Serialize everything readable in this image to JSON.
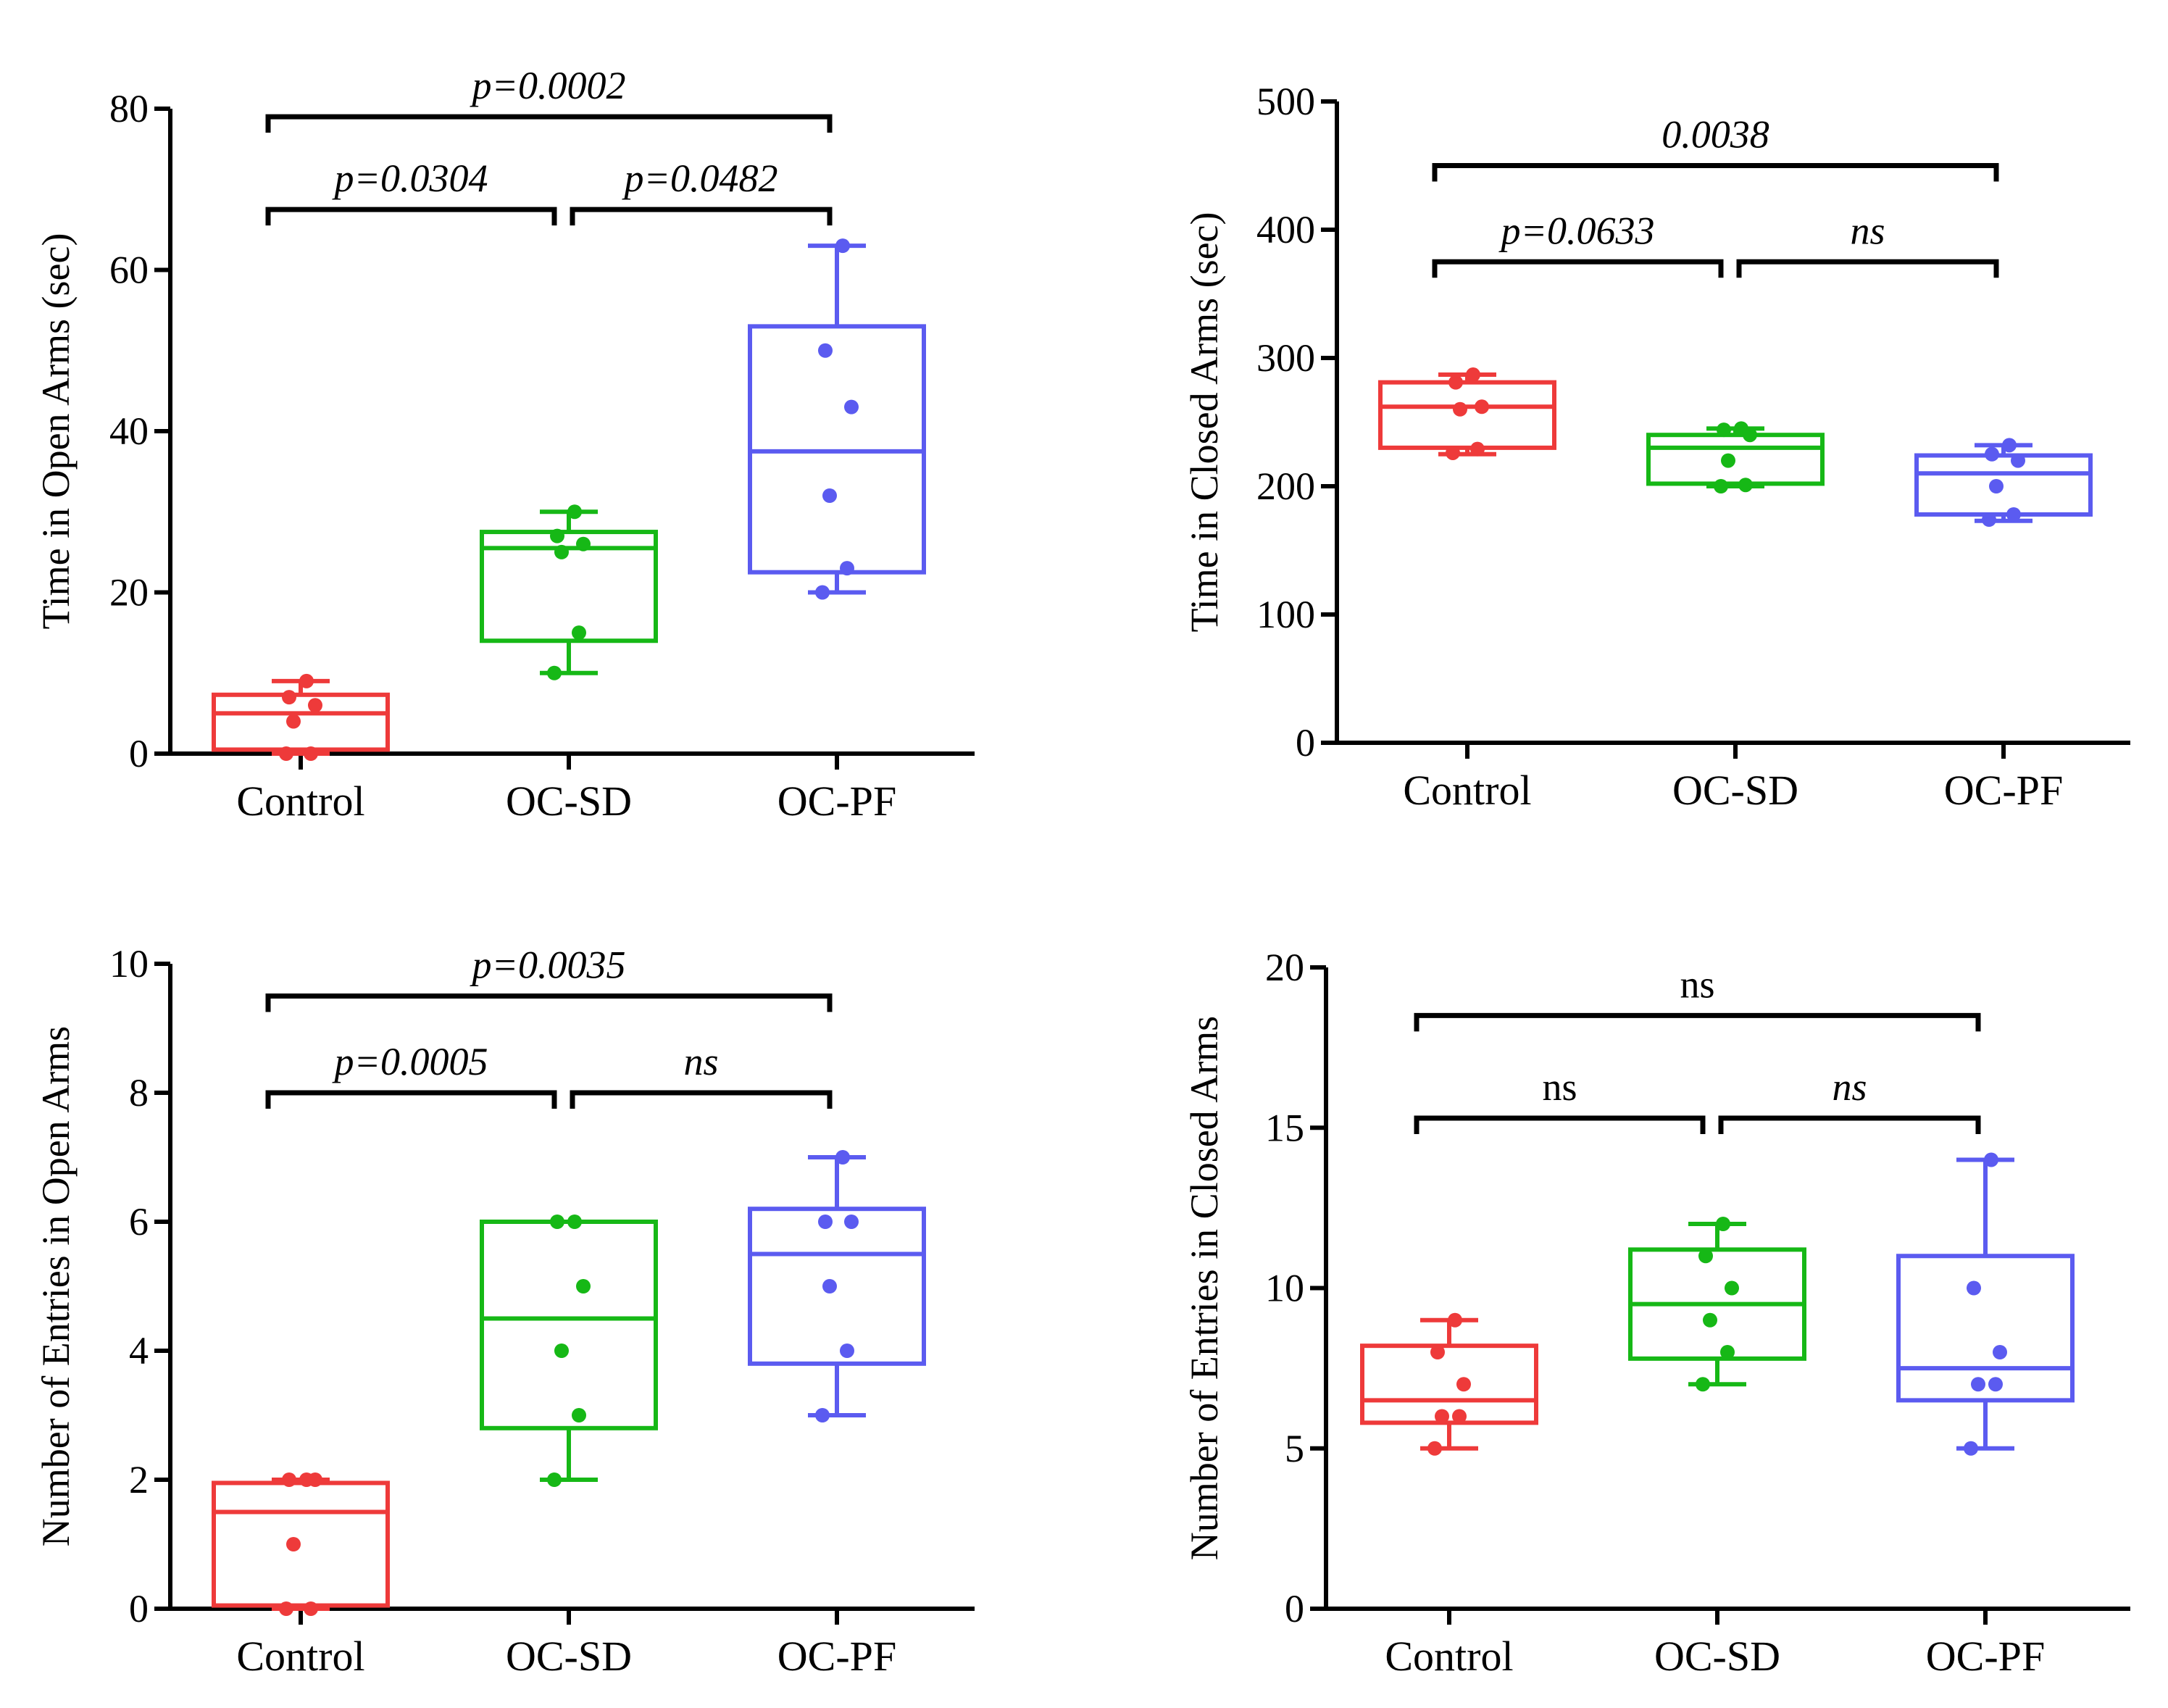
{
  "figure": {
    "colors": {
      "Control": "#ee3a3a",
      "OC-SD": "#16b816",
      "OC-PF": "#5b5bf0",
      "axis": "#000000"
    }
  },
  "chart_data": [
    {
      "type": "box",
      "title": "",
      "xlabel": "",
      "ylabel": "Time in Open Arms (sec)",
      "ylim": [
        0,
        80
      ],
      "yticks": [
        0,
        20,
        40,
        60,
        80
      ],
      "categories": [
        "Control",
        "OC-SD",
        "OC-PF"
      ],
      "boxes": [
        {
          "name": "Control",
          "min": 0,
          "q1": 0.5,
          "median": 5,
          "q3": 7.3,
          "max": 9,
          "points": [
            0,
            0,
            4,
            6,
            7,
            9
          ]
        },
        {
          "name": "OC-SD",
          "min": 10,
          "q1": 14,
          "median": 25.5,
          "q3": 27.5,
          "max": 30,
          "points": [
            10,
            15,
            25,
            26,
            27,
            30
          ]
        },
        {
          "name": "OC-PF",
          "min": 20,
          "q1": 22.5,
          "median": 37.5,
          "q3": 53,
          "max": 63,
          "points": [
            20,
            23,
            32,
            43,
            50,
            63
          ]
        }
      ],
      "comparisons": [
        {
          "from": 0,
          "to": 2,
          "y": 79,
          "label": "p=0.0002",
          "italic": true
        },
        {
          "from": 0,
          "to": 1,
          "y": 67.5,
          "label": "p=0.0304",
          "italic": true
        },
        {
          "from": 1,
          "to": 2,
          "y": 67.5,
          "label": "p=0.0482",
          "italic": true
        }
      ]
    },
    {
      "type": "box",
      "title": "",
      "xlabel": "",
      "ylabel": "Time in Closed Arms (sec)",
      "ylim": [
        0,
        500
      ],
      "yticks": [
        0,
        100,
        200,
        300,
        400,
        500
      ],
      "categories": [
        "Control",
        "OC-SD",
        "OC-PF"
      ],
      "boxes": [
        {
          "name": "Control",
          "min": 225,
          "q1": 230,
          "median": 262,
          "q3": 281,
          "max": 287,
          "points": [
            226,
            229,
            260,
            262,
            281,
            287
          ]
        },
        {
          "name": "OC-SD",
          "min": 200,
          "q1": 202,
          "median": 230,
          "q3": 240,
          "max": 245,
          "points": [
            200,
            201,
            220,
            240,
            244,
            245
          ]
        },
        {
          "name": "OC-PF",
          "min": 173,
          "q1": 178,
          "median": 210,
          "q3": 224,
          "max": 232,
          "points": [
            174,
            178,
            200,
            220,
            225,
            232
          ]
        }
      ],
      "comparisons": [
        {
          "from": 0,
          "to": 2,
          "y": 450,
          "label": "0.0038",
          "italic": true
        },
        {
          "from": 0,
          "to": 1,
          "y": 375,
          "label": "p=0.0633",
          "italic": true
        },
        {
          "from": 1,
          "to": 2,
          "y": 375,
          "label": "ns",
          "italic": true
        }
      ]
    },
    {
      "type": "box",
      "title": "",
      "xlabel": "",
      "ylabel": "Number of Entries in Open Arms",
      "ylim": [
        0,
        10
      ],
      "yticks": [
        0,
        2,
        4,
        6,
        8,
        10
      ],
      "categories": [
        "Control",
        "OC-SD",
        "OC-PF"
      ],
      "boxes": [
        {
          "name": "Control",
          "min": 0,
          "q1": 0.05,
          "median": 1.5,
          "q3": 1.95,
          "max": 2,
          "points": [
            0,
            0,
            1,
            2,
            2,
            2
          ]
        },
        {
          "name": "OC-SD",
          "min": 2,
          "q1": 2.8,
          "median": 4.5,
          "q3": 6,
          "max": 6,
          "points": [
            2,
            3,
            4,
            5,
            6,
            6
          ]
        },
        {
          "name": "OC-PF",
          "min": 3,
          "q1": 3.8,
          "median": 5.5,
          "q3": 6.2,
          "max": 7,
          "points": [
            3,
            4,
            5,
            6,
            6,
            7
          ]
        }
      ],
      "comparisons": [
        {
          "from": 0,
          "to": 2,
          "y": 9.5,
          "label": "p=0.0035",
          "italic": true
        },
        {
          "from": 0,
          "to": 1,
          "y": 8,
          "label": "p=0.0005",
          "italic": true
        },
        {
          "from": 1,
          "to": 2,
          "y": 8,
          "label": "ns",
          "italic": true
        }
      ]
    },
    {
      "type": "box",
      "title": "",
      "xlabel": "",
      "ylabel": "Number of Entries in Closed Arms",
      "ylim": [
        0,
        20
      ],
      "yticks": [
        0,
        5,
        10,
        15,
        20
      ],
      "categories": [
        "Control",
        "OC-SD",
        "OC-PF"
      ],
      "boxes": [
        {
          "name": "Control",
          "min": 5,
          "q1": 5.8,
          "median": 6.5,
          "q3": 8.2,
          "max": 9,
          "points": [
            5,
            6,
            6,
            7,
            8,
            9
          ]
        },
        {
          "name": "OC-SD",
          "min": 7,
          "q1": 7.8,
          "median": 9.5,
          "q3": 11.2,
          "max": 12,
          "points": [
            7,
            8,
            9,
            10,
            11,
            12
          ]
        },
        {
          "name": "OC-PF",
          "min": 5,
          "q1": 6.5,
          "median": 7.5,
          "q3": 11,
          "max": 14,
          "points": [
            5,
            7,
            7,
            8,
            10,
            14
          ]
        }
      ],
      "comparisons": [
        {
          "from": 0,
          "to": 2,
          "y": 18.5,
          "label": "ns",
          "italic": false
        },
        {
          "from": 0,
          "to": 1,
          "y": 15.3,
          "label": "ns",
          "italic": false
        },
        {
          "from": 1,
          "to": 2,
          "y": 15.3,
          "label": "ns",
          "italic": true
        }
      ]
    }
  ]
}
